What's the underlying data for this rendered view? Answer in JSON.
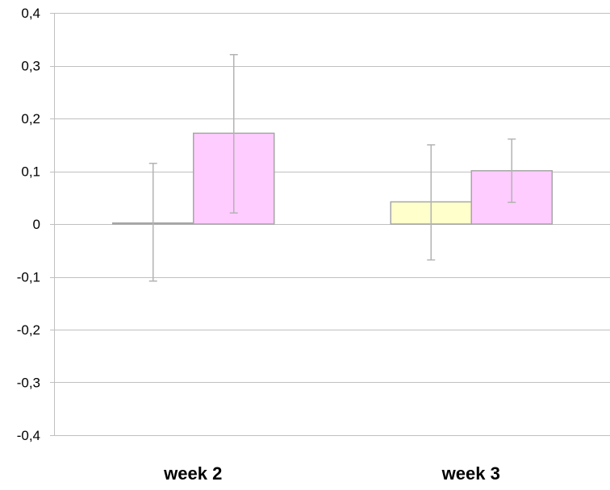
{
  "chart_data": {
    "type": "bar",
    "title": "",
    "xlabel": "",
    "ylabel": "",
    "ylim": [
      -0.4,
      0.4
    ],
    "yticks": [
      0.4,
      0.3,
      0.2,
      0.1,
      0,
      -0.1,
      -0.2,
      -0.3,
      -0.4
    ],
    "ytick_labels": [
      "0,4",
      "0,3",
      "0,2",
      "0,1",
      "0",
      "-0,1",
      "-0,2",
      "-0,3",
      "-0,4"
    ],
    "grid": true,
    "legend": "none",
    "categories": [
      "week 2",
      "week 3"
    ],
    "series": [
      {
        "color": "#ffffcc",
        "values": [
          0.002,
          0.042
        ],
        "error_low": [
          -0.108,
          -0.068
        ],
        "error_high": [
          0.115,
          0.15
        ]
      },
      {
        "color": "#ffccff",
        "values": [
          0.172,
          0.101
        ],
        "error_low": [
          0.021,
          0.041
        ],
        "error_high": [
          0.321,
          0.161
        ]
      }
    ]
  },
  "colors": {
    "grid": "#c0c0c0",
    "bar_border": "#a6a6a6",
    "error_bar": "#b3b3b3"
  }
}
